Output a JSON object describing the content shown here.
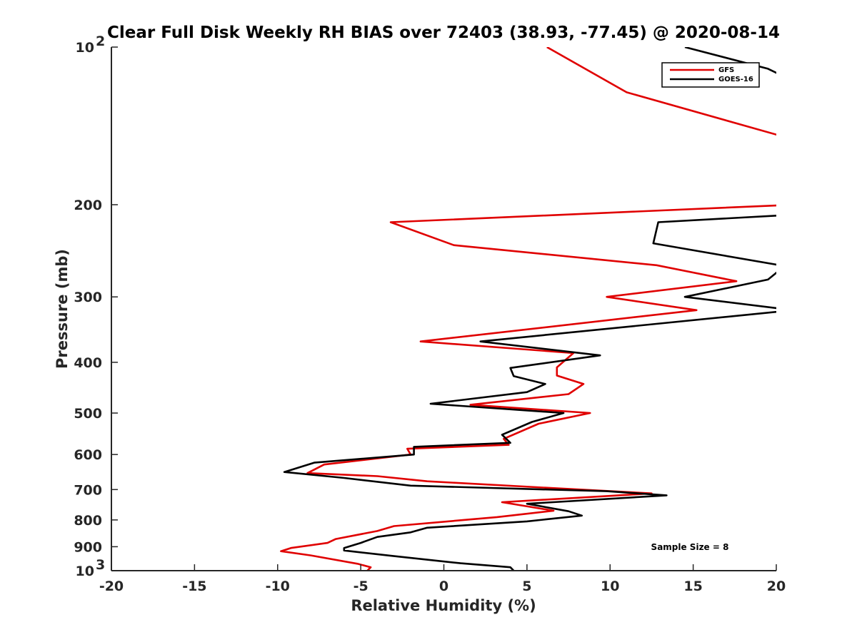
{
  "chart_data": {
    "type": "line",
    "title": "Clear Full Disk Weekly RH BIAS over 72403 (38.93, -77.45) @ 2020-08-14",
    "xlabel": "Relative Humidity (%)",
    "ylabel": "Pressure (mb)",
    "xlim": [
      -20,
      20
    ],
    "ylim": [
      100,
      1000
    ],
    "y_scale": "log",
    "y_reversed": true,
    "grid": false,
    "legend_position": "top-right",
    "x_ticks": [
      "-20",
      "-15",
      "-10",
      "-5",
      "0",
      "5",
      "10",
      "15",
      "20"
    ],
    "y_ticks": [
      {
        "value": 100,
        "base": "10",
        "exp": "2"
      },
      {
        "value": 200,
        "label": "200"
      },
      {
        "value": 300,
        "label": "300"
      },
      {
        "value": 400,
        "label": "400"
      },
      {
        "value": 500,
        "label": "500"
      },
      {
        "value": 600,
        "label": "600"
      },
      {
        "value": 700,
        "label": "700"
      },
      {
        "value": 800,
        "label": "800"
      },
      {
        "value": 900,
        "label": "900"
      },
      {
        "value": 1000,
        "base": "10",
        "exp": "3"
      }
    ],
    "annotation": "Sample Size = 8",
    "series": [
      {
        "name": "GFS",
        "color": "#e00000",
        "points": [
          [
            6.2,
            100
          ],
          [
            11,
            122
          ],
          [
            21,
            150
          ],
          [
            21,
            200
          ],
          [
            -3.2,
            216
          ],
          [
            0.6,
            239
          ],
          [
            12.8,
            261
          ],
          [
            17.6,
            280
          ],
          [
            9.8,
            300
          ],
          [
            15.2,
            318
          ],
          [
            -1.4,
            365
          ],
          [
            7.8,
            384
          ],
          [
            6.8,
            409
          ],
          [
            6.8,
            424
          ],
          [
            8.4,
            440
          ],
          [
            7.5,
            460
          ],
          [
            1.6,
            482
          ],
          [
            8.8,
            500
          ],
          [
            5.7,
            524
          ],
          [
            3.6,
            560
          ],
          [
            3.9,
            575
          ],
          [
            -2.2,
            585
          ],
          [
            -2.0,
            600
          ],
          [
            -7.2,
            627
          ],
          [
            -8.2,
            651
          ],
          [
            -4.0,
            660
          ],
          [
            -1.0,
            675
          ],
          [
            12.5,
            712
          ],
          [
            3.5,
            740
          ],
          [
            6.6,
            768
          ],
          [
            3.2,
            790
          ],
          [
            -3.0,
            822
          ],
          [
            -4.0,
            840
          ],
          [
            -6.5,
            870
          ],
          [
            -7.0,
            885
          ],
          [
            -9.2,
            905
          ],
          [
            -9.8,
            918
          ],
          [
            -8.0,
            935
          ],
          [
            -5.2,
            970
          ],
          [
            -4.4,
            985
          ],
          [
            -4.6,
            1000
          ]
        ]
      },
      {
        "name": "GOES-16",
        "color": "#000000",
        "points": [
          [
            14.5,
            100
          ],
          [
            19.5,
            110
          ],
          [
            21,
            116
          ],
          [
            21,
            209
          ],
          [
            12.9,
            216
          ],
          [
            12.6,
            237
          ],
          [
            20.5,
            262
          ],
          [
            19.5,
            278
          ],
          [
            14.5,
            300
          ],
          [
            21,
            318
          ],
          [
            2.2,
            365
          ],
          [
            9.4,
            388
          ],
          [
            4.0,
            410
          ],
          [
            4.2,
            425
          ],
          [
            6.1,
            440
          ],
          [
            5.0,
            456
          ],
          [
            -0.8,
            480
          ],
          [
            7.2,
            500
          ],
          [
            5.3,
            520
          ],
          [
            3.5,
            550
          ],
          [
            4.0,
            570
          ],
          [
            -1.8,
            580
          ],
          [
            -1.8,
            600
          ],
          [
            -7.8,
            622
          ],
          [
            -9.6,
            648
          ],
          [
            -6.0,
            665
          ],
          [
            -2.0,
            688
          ],
          [
            9.8,
            705
          ],
          [
            13.4,
            718
          ],
          [
            5.0,
            745
          ],
          [
            7.5,
            770
          ],
          [
            8.3,
            785
          ],
          [
            5.0,
            805
          ],
          [
            -1.0,
            828
          ],
          [
            -2.0,
            845
          ],
          [
            -4.0,
            862
          ],
          [
            -5.0,
            885
          ],
          [
            -6.0,
            905
          ],
          [
            -6.0,
            915
          ],
          [
            -3.0,
            938
          ],
          [
            1.0,
            968
          ],
          [
            4.0,
            985
          ],
          [
            4.2,
            1000
          ]
        ]
      }
    ]
  }
}
